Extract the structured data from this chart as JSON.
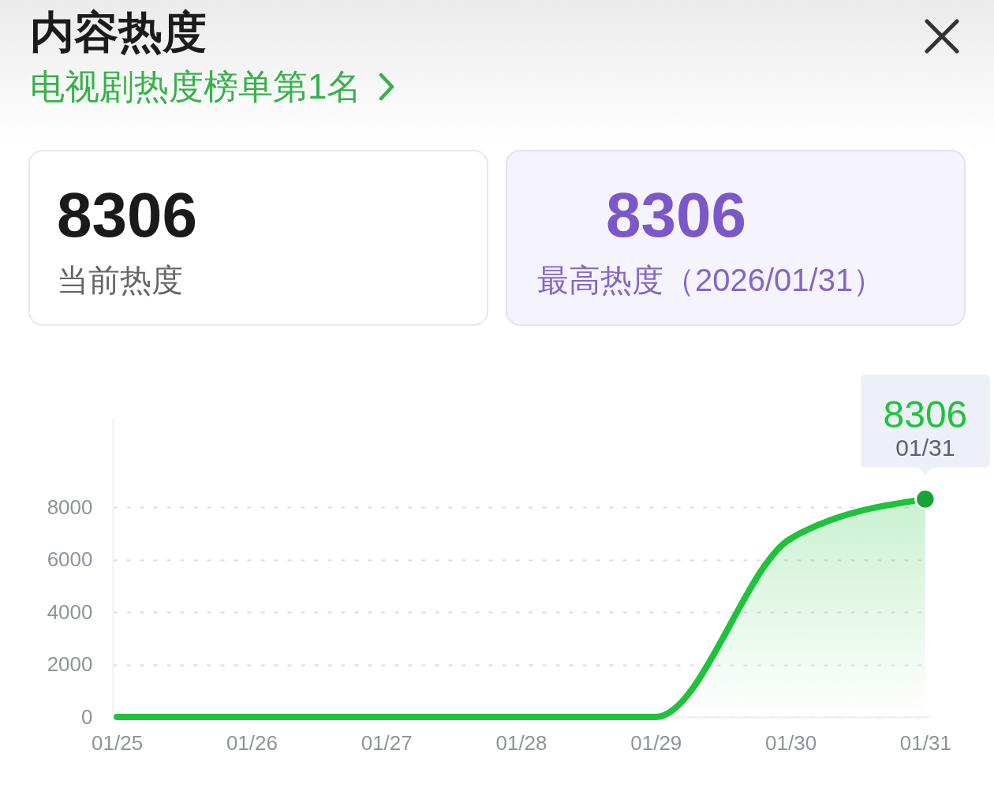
{
  "chart_data": {
    "type": "area",
    "title": "内容热度",
    "subtitle": "电视剧热度榜单第1名",
    "categories": [
      "01/25",
      "01/26",
      "01/27",
      "01/28",
      "01/29",
      "01/30",
      "01/31"
    ],
    "series": [
      {
        "color": "#1ec33c",
        "values": [
          0,
          0,
          0,
          0,
          0,
          6800,
          8306
        ]
      },
      {
        "type": "scatter",
        "x": [
          "01/31"
        ],
        "values": [
          8306
        ],
        "color": "#16a534"
      }
    ],
    "ylim": [
      0,
      11400
    ],
    "yticks": [
      0,
      2000,
      4000,
      6000,
      8000
    ],
    "grid": "y",
    "annotations": [
      "8306",
      "当前热度",
      "8306",
      "最高热度（2026/01/31）",
      {
        "text": "8306",
        "x": "01/31",
        "y": 8306
      },
      {
        "text": "01/31",
        "x": "01/31",
        "y": 8306
      }
    ]
  }
}
